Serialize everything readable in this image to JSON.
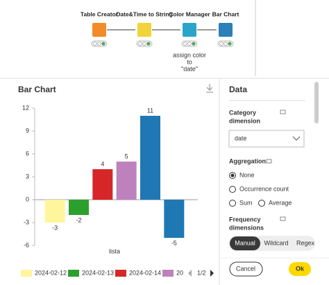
{
  "workflow": {
    "nodes": [
      {
        "label": "Table Creator",
        "color": "#f28c28"
      },
      {
        "label": "Date&Time to String",
        "color": "#f3d33a"
      },
      {
        "label": "Color Manager",
        "color": "#2aa5c9"
      },
      {
        "label": "Bar Chart",
        "color": "#2c7fb8"
      }
    ],
    "annotation": [
      "assign color",
      "to",
      "\"date\""
    ]
  },
  "chart_data": {
    "type": "bar",
    "title": "Bar Chart",
    "x_label": "lista",
    "categories": [
      null,
      null,
      null,
      null,
      null,
      null
    ],
    "values": [
      -3,
      -2,
      4,
      5,
      11,
      -5
    ],
    "colors": [
      "#fff59d",
      "#2ca02c",
      "#d62728",
      "#bd82bd",
      "#1f77b4",
      "#1f77b4"
    ],
    "ylim": [
      -6,
      12
    ],
    "yticks": [
      -6,
      -3,
      0,
      3,
      6,
      9,
      12
    ],
    "legend": {
      "position": "bottom",
      "items": [
        {
          "name": "2024-02-12",
          "color": "#fff59d"
        },
        {
          "name": "2024-02-13",
          "color": "#2ca02c"
        },
        {
          "name": "2024-02-14",
          "color": "#d62728"
        },
        {
          "name": "20",
          "color": "#bd82bd"
        }
      ],
      "page": "1/2"
    }
  },
  "panel": {
    "title": "Data",
    "category_label": [
      "Category",
      "dimension"
    ],
    "category_value": "date",
    "aggregation_label": "Aggregation",
    "aggregation_options": [
      "None",
      "Occurrence count",
      "Sum",
      "Average"
    ],
    "frequency_label": [
      "Frequency",
      "dimensions"
    ],
    "tabs": [
      "Manual",
      "Wildcard",
      "Regex"
    ],
    "buttons": {
      "cancel": "Cancel",
      "ok": "Ok"
    }
  }
}
